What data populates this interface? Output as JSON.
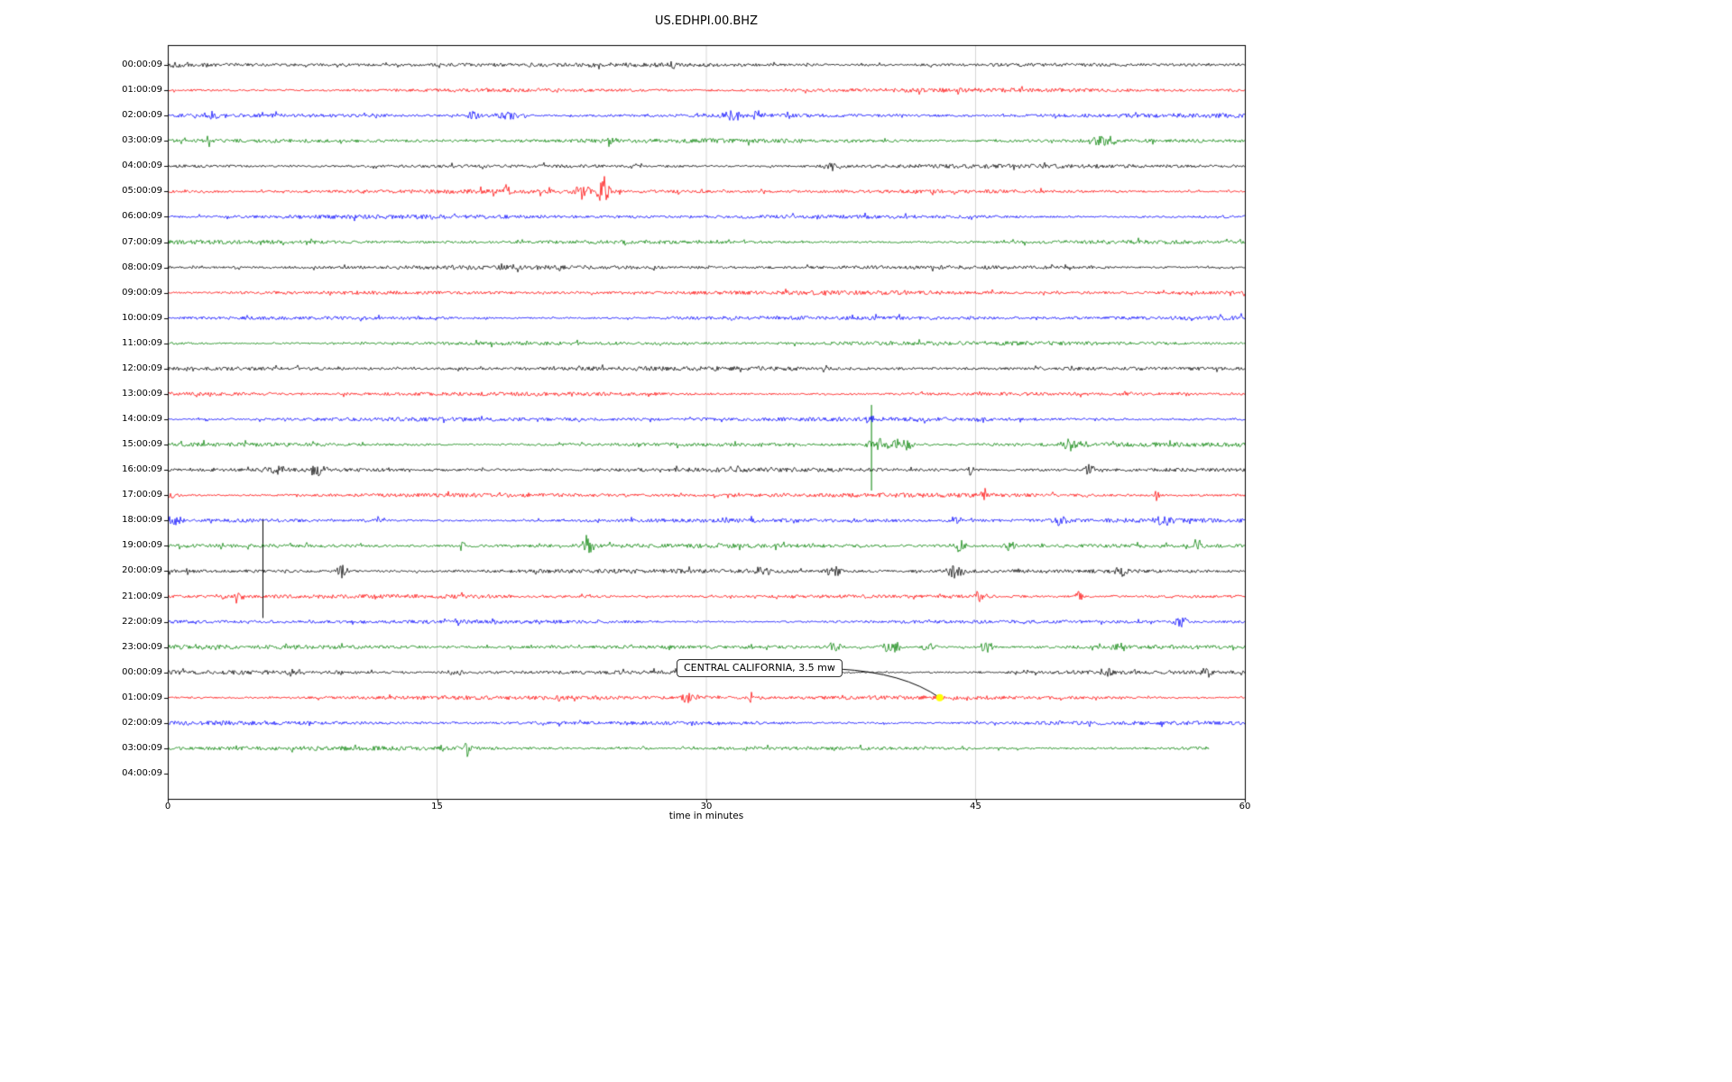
{
  "title": "US.EDHPI.00.BHZ",
  "chart_data": {
    "type": "line",
    "variant": "seismogram-dayplot",
    "station": "US.EDHPI.00.BHZ",
    "xlabel": "time in minutes",
    "x_ticks": [
      0,
      15,
      30,
      45,
      60
    ],
    "x_range": [
      0,
      60
    ],
    "grid": "vertical-only",
    "trace_colors": [
      "#000000",
      "#ff0000",
      "#0000ff",
      "#008000"
    ],
    "annotation": {
      "text": "CENTRAL CALIFORNIA, 3.5 mw",
      "row_index": 25,
      "row_label": "01:00:09",
      "minute": 43,
      "marker_color": "#ffff00"
    },
    "rows": [
      {
        "label": "00:00:09",
        "color": "#000000",
        "events": [
          {
            "m": 0.7,
            "w": 0.5,
            "a": 3
          },
          {
            "m": 28.1,
            "w": 0.1,
            "a": 7
          }
        ]
      },
      {
        "label": "01:00:09",
        "color": "#ff0000",
        "events": []
      },
      {
        "label": "02:00:09",
        "color": "#0000ff",
        "events": [
          {
            "m": 2.6,
            "w": 0.5,
            "a": 5
          },
          {
            "m": 17.0,
            "w": 0.4,
            "a": 5
          },
          {
            "m": 19.0,
            "w": 1.2,
            "a": 4
          },
          {
            "m": 31.5,
            "w": 0.5,
            "a": 7
          },
          {
            "m": 32.9,
            "w": 0.3,
            "a": 5
          }
        ]
      },
      {
        "label": "03:00:09",
        "color": "#008000",
        "events": [
          {
            "m": 2.3,
            "w": 0.12,
            "a": 8
          },
          {
            "m": 24.6,
            "w": 0.3,
            "a": 7
          },
          {
            "m": 52.1,
            "w": 0.8,
            "a": 7
          }
        ]
      },
      {
        "label": "04:00:09",
        "color": "#000000",
        "events": [
          {
            "m": 37.0,
            "w": 0.5,
            "a": 5
          }
        ]
      },
      {
        "label": "05:00:09",
        "color": "#ff0000",
        "events": [
          {
            "m": 18.9,
            "w": 0.2,
            "a": 8
          },
          {
            "m": 23.1,
            "w": 0.5,
            "a": 10
          },
          {
            "m": 24.3,
            "w": 0.3,
            "a": 18
          }
        ]
      },
      {
        "label": "06:00:09",
        "color": "#0000ff",
        "events": []
      },
      {
        "label": "07:00:09",
        "color": "#008000",
        "events": []
      },
      {
        "label": "08:00:09",
        "color": "#000000",
        "events": []
      },
      {
        "label": "09:00:09",
        "color": "#ff0000",
        "events": []
      },
      {
        "label": "10:00:09",
        "color": "#0000ff",
        "events": []
      },
      {
        "label": "11:00:09",
        "color": "#008000",
        "events": []
      },
      {
        "label": "12:00:09",
        "color": "#000000",
        "events": []
      },
      {
        "label": "13:00:09",
        "color": "#ff0000",
        "events": []
      },
      {
        "label": "14:00:09",
        "color": "#0000ff",
        "events": [
          {
            "m": 39.1,
            "w": 0.2,
            "a": 5
          }
        ]
      },
      {
        "label": "15:00:09",
        "color": "#008000",
        "events": [
          {
            "m": 39.2,
            "s": true,
            "up": 44,
            "dn": 51
          },
          {
            "m": 39.9,
            "w": 0.8,
            "a": 9
          },
          {
            "m": 41.2,
            "w": 0.5,
            "a": 6
          },
          {
            "m": 50.5,
            "w": 0.6,
            "a": 7
          }
        ]
      },
      {
        "label": "16:00:09",
        "color": "#000000",
        "events": [
          {
            "m": 6.0,
            "w": 0.6,
            "a": 5
          },
          {
            "m": 8.3,
            "w": 0.5,
            "a": 7
          },
          {
            "m": 44.7,
            "w": 0.15,
            "a": 10
          },
          {
            "m": 51.3,
            "w": 0.3,
            "a": 7
          }
        ]
      },
      {
        "label": "17:00:09",
        "color": "#ff0000",
        "events": [
          {
            "m": 0.3,
            "w": 0.3,
            "a": 5
          },
          {
            "m": 45.4,
            "w": 0.2,
            "a": 6
          },
          {
            "m": 55.1,
            "w": 0.1,
            "a": 10
          }
        ]
      },
      {
        "label": "18:00:09",
        "color": "#0000ff",
        "events": [
          {
            "m": 0.4,
            "w": 0.4,
            "a": 6
          },
          {
            "m": 11.7,
            "w": 0.2,
            "a": 6
          },
          {
            "m": 44.0,
            "w": 0.4,
            "a": 6
          },
          {
            "m": 49.7,
            "w": 0.4,
            "a": 6
          },
          {
            "m": 55.4,
            "w": 0.5,
            "a": 7
          }
        ]
      },
      {
        "label": "19:00:09",
        "color": "#008000",
        "events": [
          {
            "m": 16.4,
            "w": 0.15,
            "a": 10
          },
          {
            "m": 23.4,
            "w": 0.3,
            "a": 15
          },
          {
            "m": 44.1,
            "w": 0.4,
            "a": 7
          },
          {
            "m": 46.9,
            "w": 0.4,
            "a": 6
          },
          {
            "m": 57.4,
            "w": 0.3,
            "a": 8
          }
        ]
      },
      {
        "label": "20:00:09",
        "color": "#000000",
        "events": [
          {
            "m": 1.1,
            "w": 0.12,
            "a": 9
          },
          {
            "m": 5.3,
            "s": true,
            "up": 58,
            "dn": 52
          },
          {
            "m": 9.7,
            "w": 0.3,
            "a": 8
          },
          {
            "m": 33.1,
            "w": 0.4,
            "a": 6
          },
          {
            "m": 37.1,
            "w": 0.4,
            "a": 7
          },
          {
            "m": 43.9,
            "w": 0.6,
            "a": 8
          },
          {
            "m": 53.1,
            "w": 0.4,
            "a": 6
          }
        ]
      },
      {
        "label": "21:00:09",
        "color": "#ff0000",
        "events": [
          {
            "m": 3.9,
            "w": 0.3,
            "a": 7
          },
          {
            "m": 45.2,
            "w": 0.4,
            "a": 5
          },
          {
            "m": 50.8,
            "w": 0.3,
            "a": 5
          }
        ]
      },
      {
        "label": "22:00:09",
        "color": "#0000ff",
        "events": [
          {
            "m": 56.4,
            "w": 0.4,
            "a": 7
          }
        ]
      },
      {
        "label": "23:00:09",
        "color": "#008000",
        "events": [
          {
            "m": 37.1,
            "w": 0.4,
            "a": 6
          },
          {
            "m": 40.3,
            "w": 0.5,
            "a": 8
          },
          {
            "m": 42.4,
            "w": 0.4,
            "a": 7
          },
          {
            "m": 45.6,
            "w": 0.4,
            "a": 6
          },
          {
            "m": 53.0,
            "w": 0.4,
            "a": 6
          }
        ]
      },
      {
        "label": "00:00:09",
        "color": "#000000",
        "events": [
          {
            "m": 7.0,
            "w": 0.5,
            "a": 4
          },
          {
            "m": 16.1,
            "w": 0.5,
            "a": 4
          },
          {
            "m": 52.4,
            "w": 0.3,
            "a": 5
          },
          {
            "m": 57.9,
            "w": 0.3,
            "a": 5
          }
        ]
      },
      {
        "label": "01:00:09",
        "color": "#ff0000",
        "events": [
          {
            "m": 21.7,
            "w": 0.3,
            "a": 5
          },
          {
            "m": 29.0,
            "w": 0.5,
            "a": 6
          },
          {
            "m": 30.5,
            "w": 0.3,
            "a": 5
          },
          {
            "m": 32.5,
            "w": 0.15,
            "a": 7
          }
        ]
      },
      {
        "label": "02:00:09",
        "color": "#0000ff",
        "events": []
      },
      {
        "label": "03:00:09",
        "color": "#008000",
        "end_minute": 58,
        "events": [
          {
            "m": 16.7,
            "w": 0.2,
            "a": 9
          }
        ]
      },
      {
        "label": "04:00:09",
        "color": "#000000",
        "has_trace": false,
        "events": []
      }
    ]
  }
}
